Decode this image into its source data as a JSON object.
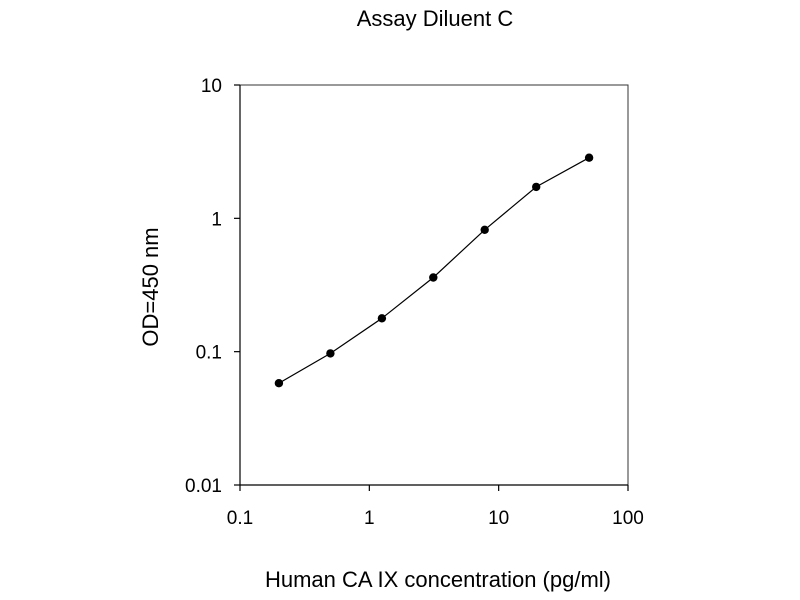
{
  "chart_data": {
    "type": "line",
    "title": "Assay Diluent C",
    "xlabel": "Human CA IX concentration (pg/ml)",
    "ylabel": "OD=450 nm",
    "xscale": "log",
    "yscale": "log",
    "xlim": [
      0.1,
      100
    ],
    "ylim": [
      0.01,
      10
    ],
    "xticks": [
      0.1,
      1,
      10,
      100
    ],
    "xtick_labels": [
      "0.1",
      "1",
      "10",
      "100"
    ],
    "yticks": [
      0.01,
      0.1,
      1,
      10
    ],
    "ytick_labels": [
      "0.01",
      "0.1",
      "1",
      "10"
    ],
    "grid": false,
    "legend": "none",
    "marker": "filled-circle",
    "line_color": "#000000",
    "series": [
      {
        "x": [
          0.2,
          0.5,
          1.25,
          3.125,
          7.8,
          19.5,
          50
        ],
        "y": [
          0.058,
          0.097,
          0.178,
          0.36,
          0.82,
          1.72,
          2.85
        ]
      }
    ]
  }
}
